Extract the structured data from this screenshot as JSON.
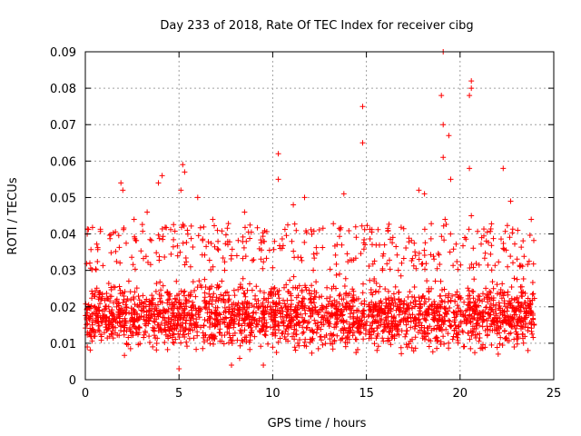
{
  "chart_data": {
    "type": "scatter",
    "title": "Day 233 of 2018, Rate Of TEC Index for receiver cibg",
    "xlabel": "GPS time / hours",
    "ylabel": "ROTI / TECUs",
    "xlim": [
      0,
      25
    ],
    "ylim": [
      0,
      0.09
    ],
    "xticks": [
      0,
      5,
      10,
      15,
      20,
      25
    ],
    "yticks": [
      0,
      0.01,
      0.02,
      0.03,
      0.04,
      0.05,
      0.06,
      0.07,
      0.08,
      0.09
    ],
    "xtick_labels": [
      "0",
      "5",
      "10",
      "15",
      "20",
      "25"
    ],
    "ytick_labels": [
      "0",
      "0.01",
      "0.02",
      "0.03",
      "0.04",
      "0.05",
      "0.06",
      "0.07",
      "0.08",
      "0.09"
    ],
    "grid": true,
    "marker": "+",
    "series": [
      {
        "name": "ROTI",
        "color": "#ff0000",
        "x_range": [
          0,
          24
        ],
        "bulk_range": [
          0.005,
          0.03
        ],
        "notable_points": [
          {
            "x": 0.1,
            "y": 0.04
          },
          {
            "x": 1.9,
            "y": 0.054
          },
          {
            "x": 2.0,
            "y": 0.052
          },
          {
            "x": 2.6,
            "y": 0.044
          },
          {
            "x": 3.3,
            "y": 0.046
          },
          {
            "x": 3.9,
            "y": 0.054
          },
          {
            "x": 4.1,
            "y": 0.056
          },
          {
            "x": 5.2,
            "y": 0.059
          },
          {
            "x": 5.3,
            "y": 0.057
          },
          {
            "x": 5.1,
            "y": 0.052
          },
          {
            "x": 6.0,
            "y": 0.05
          },
          {
            "x": 6.8,
            "y": 0.044
          },
          {
            "x": 8.5,
            "y": 0.046
          },
          {
            "x": 10.3,
            "y": 0.062
          },
          {
            "x": 10.3,
            "y": 0.055
          },
          {
            "x": 11.1,
            "y": 0.048
          },
          {
            "x": 11.7,
            "y": 0.05
          },
          {
            "x": 13.8,
            "y": 0.051
          },
          {
            "x": 14.8,
            "y": 0.075
          },
          {
            "x": 14.8,
            "y": 0.065
          },
          {
            "x": 17.8,
            "y": 0.052
          },
          {
            "x": 18.1,
            "y": 0.051
          },
          {
            "x": 19.1,
            "y": 0.09
          },
          {
            "x": 19.0,
            "y": 0.078
          },
          {
            "x": 19.1,
            "y": 0.07
          },
          {
            "x": 19.4,
            "y": 0.067
          },
          {
            "x": 19.1,
            "y": 0.061
          },
          {
            "x": 19.5,
            "y": 0.055
          },
          {
            "x": 19.2,
            "y": 0.044
          },
          {
            "x": 20.6,
            "y": 0.082
          },
          {
            "x": 20.6,
            "y": 0.08
          },
          {
            "x": 20.5,
            "y": 0.078
          },
          {
            "x": 20.5,
            "y": 0.058
          },
          {
            "x": 20.6,
            "y": 0.045
          },
          {
            "x": 22.3,
            "y": 0.058
          },
          {
            "x": 22.7,
            "y": 0.049
          },
          {
            "x": 23.8,
            "y": 0.044
          },
          {
            "x": 7.8,
            "y": 0.004
          },
          {
            "x": 5.0,
            "y": 0.003
          },
          {
            "x": 9.5,
            "y": 0.004
          }
        ]
      }
    ]
  }
}
